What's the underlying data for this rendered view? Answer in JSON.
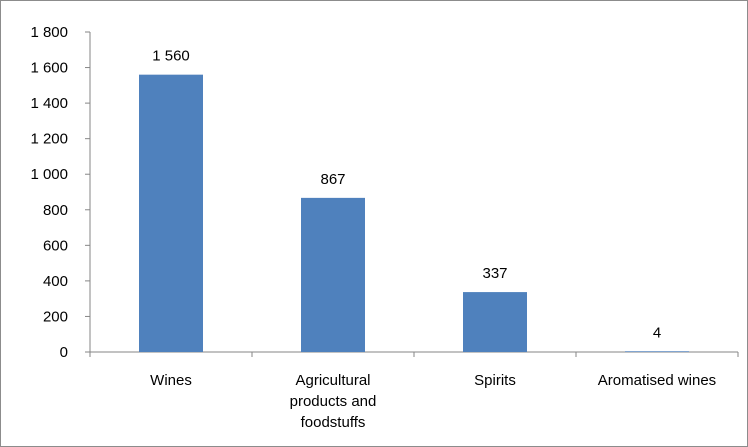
{
  "chart_data": {
    "type": "bar",
    "title": "",
    "xlabel": "",
    "ylabel": "",
    "categories": [
      "Wines",
      "Agricultural products and foodstuffs",
      "Spirits",
      "Aromatised wines"
    ],
    "category_lines": [
      [
        "Wines"
      ],
      [
        "Agricultural",
        "products and",
        "foodstuffs"
      ],
      [
        "Spirits"
      ],
      [
        "Aromatised wines"
      ]
    ],
    "values": [
      1560,
      867,
      337,
      4
    ],
    "value_labels": [
      "1 560",
      "867",
      "337",
      "4"
    ],
    "ylim": [
      0,
      1800
    ],
    "yticks": [
      0,
      200,
      400,
      600,
      800,
      1000,
      1200,
      1400,
      1600,
      1800
    ],
    "ytick_labels": [
      "0",
      "200",
      "400",
      "600",
      "800",
      "1 000",
      "1 200",
      "1 400",
      "1 600",
      "1 800"
    ],
    "grid": false,
    "legend": false,
    "bar_color": "#4f81bd",
    "axis_color": "#868686"
  }
}
